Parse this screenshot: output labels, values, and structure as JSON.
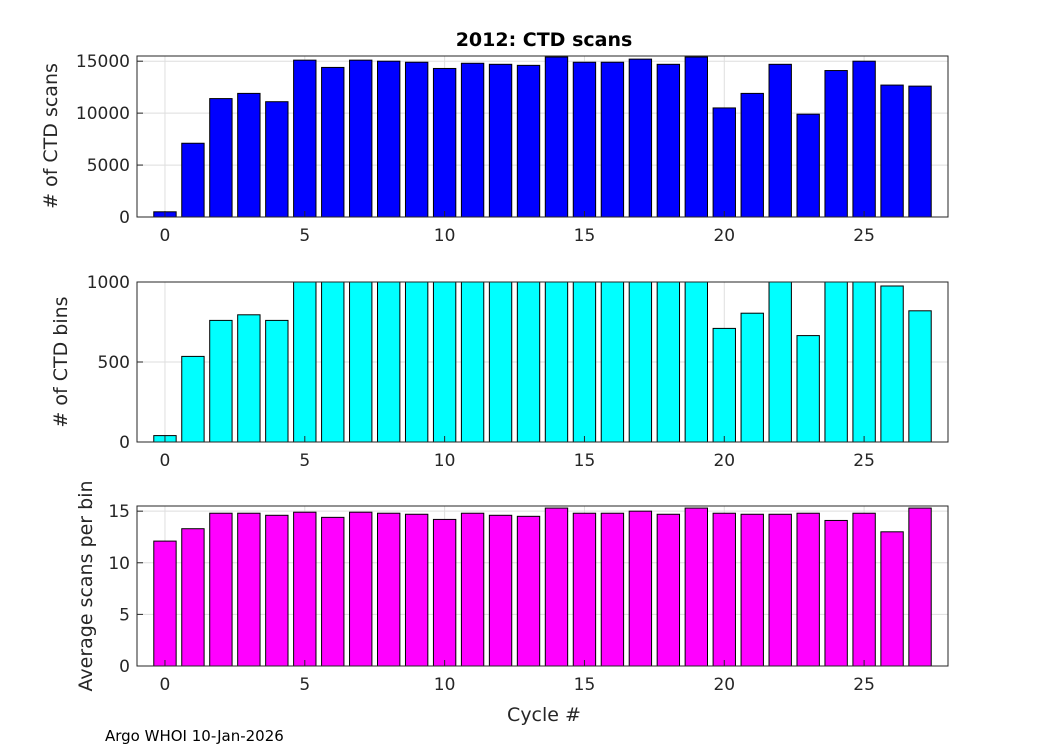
{
  "chart_data": [
    {
      "type": "bar",
      "title": "2012: CTD scans",
      "xlabel": "",
      "ylabel": "# of CTD scans",
      "xlim": [
        -1,
        28
      ],
      "ylim": [
        0,
        15500
      ],
      "xticks": [
        0,
        5,
        10,
        15,
        20,
        25
      ],
      "yticks": [
        0,
        5000,
        10000,
        15000
      ],
      "grid": true,
      "color": "#0000ff",
      "x": [
        0,
        1,
        2,
        3,
        4,
        5,
        6,
        7,
        8,
        9,
        10,
        11,
        12,
        13,
        14,
        15,
        16,
        17,
        18,
        19,
        20,
        21,
        22,
        23,
        24,
        25,
        26,
        27
      ],
      "values": [
        500,
        7100,
        11400,
        11900,
        11100,
        15100,
        14400,
        15100,
        15000,
        14900,
        14300,
        14800,
        14700,
        14600,
        15400,
        14900,
        14900,
        15200,
        14700,
        15400,
        10500,
        11900,
        14700,
        9900,
        14100,
        15000,
        12700,
        12600
      ]
    },
    {
      "type": "bar",
      "title": "",
      "xlabel": "",
      "ylabel": "# of CTD bins",
      "xlim": [
        -1,
        28
      ],
      "ylim": [
        0,
        1000
      ],
      "xticks": [
        0,
        5,
        10,
        15,
        20,
        25
      ],
      "yticks": [
        0,
        500,
        1000
      ],
      "grid": true,
      "color": "#00ffff",
      "x": [
        0,
        1,
        2,
        3,
        4,
        5,
        6,
        7,
        8,
        9,
        10,
        11,
        12,
        13,
        14,
        15,
        16,
        17,
        18,
        19,
        20,
        21,
        22,
        23,
        24,
        25,
        26,
        27
      ],
      "values": [
        40,
        535,
        760,
        795,
        760,
        1000,
        1000,
        1000,
        1000,
        1000,
        1000,
        1000,
        1000,
        1000,
        1000,
        1000,
        1000,
        1000,
        1000,
        1000,
        710,
        805,
        1000,
        665,
        1000,
        1000,
        975,
        820
      ]
    },
    {
      "type": "bar",
      "title": "",
      "xlabel": "Cycle #",
      "ylabel": "Average scans per bin",
      "xlim": [
        -1,
        28
      ],
      "ylim": [
        0,
        15.5
      ],
      "xticks": [
        0,
        5,
        10,
        15,
        20,
        25
      ],
      "yticks": [
        0,
        5,
        10,
        15
      ],
      "grid": true,
      "color": "#ff00ff",
      "x": [
        0,
        1,
        2,
        3,
        4,
        5,
        6,
        7,
        8,
        9,
        10,
        11,
        12,
        13,
        14,
        15,
        16,
        17,
        18,
        19,
        20,
        21,
        22,
        23,
        24,
        25,
        26,
        27
      ],
      "values": [
        12.1,
        13.3,
        14.8,
        14.8,
        14.6,
        14.9,
        14.4,
        14.9,
        14.8,
        14.7,
        14.2,
        14.8,
        14.6,
        14.5,
        15.3,
        14.8,
        14.8,
        15.0,
        14.7,
        15.3,
        14.8,
        14.7,
        14.7,
        14.8,
        14.1,
        14.8,
        13.0,
        15.3
      ]
    }
  ],
  "footer": "Argo WHOI 10-Jan-2026"
}
